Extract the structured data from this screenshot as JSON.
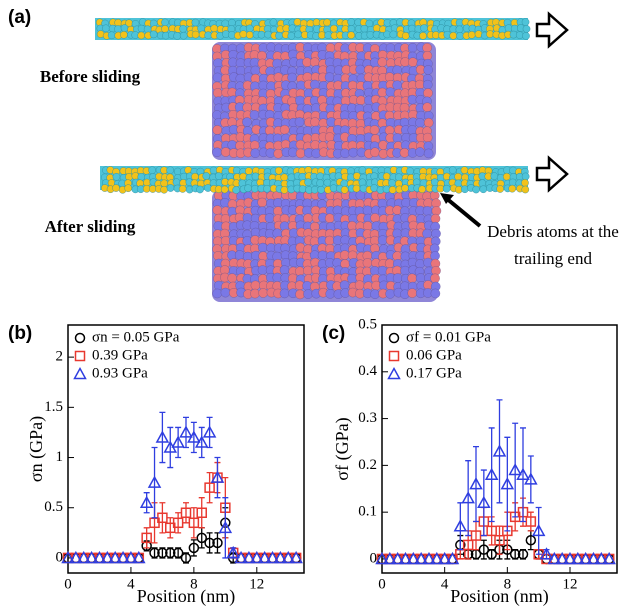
{
  "panel_a": {
    "label": "(a)",
    "before": "Before sliding",
    "after": "After sliding",
    "annotation": "Debris atoms at the trailing end"
  },
  "chart_data": [
    {
      "type": "scatter",
      "panel": "(b)",
      "xlabel": "Position (nm)",
      "ylabel": "σn (GPa)",
      "xlim": [
        0,
        15
      ],
      "ylim": [
        -0.15,
        2.32
      ],
      "xticks": [
        0,
        4,
        8,
        12
      ],
      "yticks": [
        0,
        0.5,
        1,
        1.5,
        2
      ],
      "x": [
        0,
        0.5,
        1,
        1.5,
        2,
        2.5,
        3,
        3.5,
        4,
        4.5,
        5,
        5.5,
        6,
        6.5,
        7,
        7.5,
        8,
        8.5,
        9,
        9.5,
        10,
        10.5,
        11,
        11.5,
        12,
        12.5,
        13,
        13.5,
        14,
        14.5
      ],
      "series": [
        {
          "name": "σn = 0.05 GPa",
          "color": "#000000",
          "marker": "circle",
          "values": [
            0,
            0,
            0,
            0,
            0,
            0,
            0,
            0,
            0,
            0,
            0.12,
            0.05,
            0.05,
            0.05,
            0.05,
            0,
            0.1,
            0.2,
            0.15,
            0.15,
            0.35,
            0,
            0,
            0,
            0,
            0,
            0,
            0,
            0,
            0
          ],
          "errors": [
            0,
            0,
            0,
            0,
            0,
            0,
            0,
            0,
            0,
            0,
            0.05,
            0.05,
            0.05,
            0.05,
            0.05,
            0.05,
            0.08,
            0.1,
            0.1,
            0.1,
            0.15,
            0.05,
            0,
            0,
            0,
            0,
            0,
            0,
            0,
            0
          ]
        },
        {
          "name": "0.39 GPa",
          "color": "#e8382f",
          "marker": "square",
          "values": [
            0,
            0,
            0,
            0,
            0,
            0,
            0,
            0,
            0,
            0,
            0.2,
            0.35,
            0.4,
            0.3,
            0.35,
            0.45,
            0.35,
            0.45,
            0.7,
            0.8,
            0.5,
            0.05,
            0,
            0,
            0,
            0,
            0,
            0,
            0,
            0
          ],
          "errors": [
            0,
            0,
            0,
            0,
            0,
            0,
            0,
            0,
            0,
            0,
            0.1,
            0.2,
            0.15,
            0.1,
            0.1,
            0.1,
            0.15,
            0.15,
            0.15,
            0.15,
            0.3,
            0.05,
            0,
            0,
            0,
            0,
            0,
            0,
            0,
            0
          ]
        },
        {
          "name": "0.93 GPa",
          "color": "#2f3ee0",
          "marker": "triangle",
          "values": [
            0,
            0,
            0,
            0,
            0,
            0,
            0,
            0,
            0,
            0,
            0.55,
            0.75,
            1.2,
            1.1,
            1.15,
            1.25,
            1.2,
            1.15,
            1.25,
            0.8,
            0.3,
            0.05,
            0,
            0,
            0,
            0,
            0,
            0,
            0,
            0
          ],
          "errors": [
            0,
            0,
            0,
            0,
            0,
            0,
            0,
            0,
            0,
            0,
            0.1,
            0.35,
            0.25,
            0.2,
            0.15,
            0.15,
            0.15,
            0.15,
            0.15,
            0.2,
            0.3,
            0.05,
            0,
            0,
            0,
            0,
            0,
            0,
            0,
            0
          ]
        }
      ]
    },
    {
      "type": "scatter",
      "panel": "(c)",
      "xlabel": "Position (nm)",
      "ylabel": "σf (GPa)",
      "xlim": [
        0,
        15
      ],
      "ylim": [
        -0.03,
        0.5
      ],
      "xticks": [
        0,
        4,
        8,
        12
      ],
      "yticks": [
        0,
        0.1,
        0.2,
        0.3,
        0.4,
        0.5
      ],
      "x": [
        0,
        0.5,
        1,
        1.5,
        2,
        2.5,
        3,
        3.5,
        4,
        4.5,
        5,
        5.5,
        6,
        6.5,
        7,
        7.5,
        8,
        8.5,
        9,
        9.5,
        10,
        10.5,
        11,
        11.5,
        12,
        12.5,
        13,
        13.5,
        14,
        14.5
      ],
      "series": [
        {
          "name": "σf = 0.01 GPa",
          "color": "#000000",
          "marker": "circle",
          "values": [
            0,
            0,
            0,
            0,
            0,
            0,
            0,
            0,
            0,
            0,
            0.03,
            0.01,
            0.01,
            0.02,
            0.01,
            0.02,
            0.02,
            0.01,
            0.01,
            0.04,
            0.01,
            0,
            0,
            0,
            0,
            0,
            0,
            0,
            0,
            0
          ],
          "errors": [
            0,
            0,
            0,
            0,
            0,
            0,
            0,
            0,
            0,
            0,
            0.02,
            0.01,
            0.01,
            0.02,
            0.01,
            0.02,
            0.02,
            0.01,
            0.01,
            0.02,
            0.01,
            0,
            0,
            0,
            0,
            0,
            0,
            0,
            0,
            0
          ]
        },
        {
          "name": "0.06 GPa",
          "color": "#e8382f",
          "marker": "square",
          "values": [
            0,
            0,
            0,
            0,
            0,
            0,
            0,
            0,
            0,
            0,
            0.01,
            0.03,
            0.05,
            0.08,
            0.06,
            0.04,
            0.06,
            0.09,
            0.1,
            0.08,
            0.01,
            0,
            0,
            0,
            0,
            0,
            0,
            0,
            0,
            0
          ],
          "errors": [
            0,
            0,
            0,
            0,
            0,
            0,
            0,
            0,
            0,
            0,
            0.01,
            0.03,
            0.03,
            0.03,
            0.03,
            0.03,
            0.04,
            0.03,
            0.03,
            0.02,
            0.01,
            0,
            0,
            0,
            0,
            0,
            0,
            0,
            0,
            0
          ]
        },
        {
          "name": "0.17 GPa",
          "color": "#2f3ee0",
          "marker": "triangle",
          "values": [
            0,
            0,
            0,
            0,
            0,
            0,
            0,
            0,
            0,
            0,
            0.07,
            0.13,
            0.16,
            0.12,
            0.18,
            0.23,
            0.16,
            0.19,
            0.18,
            0.17,
            0.06,
            0.01,
            0,
            0,
            0,
            0,
            0,
            0,
            0,
            0
          ],
          "errors": [
            0,
            0,
            0,
            0,
            0,
            0,
            0,
            0,
            0,
            0,
            0.05,
            0.08,
            0.08,
            0.07,
            0.1,
            0.11,
            0.1,
            0.1,
            0.1,
            0.05,
            0.05,
            0.01,
            0,
            0,
            0,
            0,
            0,
            0,
            0,
            0
          ]
        }
      ]
    }
  ]
}
